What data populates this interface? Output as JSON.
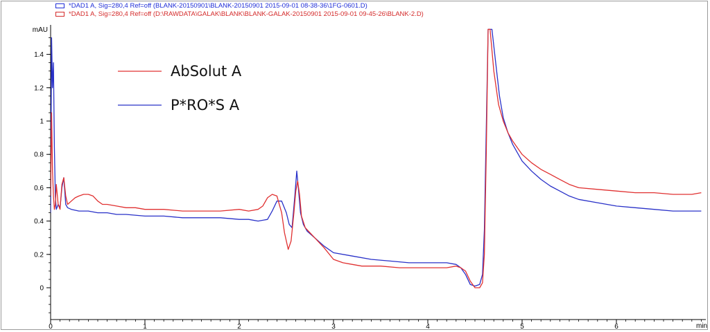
{
  "header": {
    "line1": "*DAD1 A, Sig=280,4 Ref=off (BLANK-20150901\\BLANK-20150901 2015-09-01 08-38-36\\1FG-0601.D)",
    "line2": "*DAD1 A, Sig=280,4 Ref=off (D:\\RAWDATA\\GALAK\\BLANK\\BLANK-GALAK-20150901 2015-09-01 09-45-26\\BLANK-2.D)"
  },
  "chart_data": {
    "type": "line",
    "title": "",
    "xlabel": "min",
    "ylabel": "mAU",
    "xlim": [
      0,
      6.9
    ],
    "ylim": [
      -0.3,
      1.55
    ],
    "xticks": [
      0,
      1,
      2,
      3,
      4,
      5,
      6
    ],
    "yticks": [
      0,
      0.2,
      0.4,
      0.6,
      0.8,
      1,
      1.2,
      1.4
    ],
    "ytick_labels": [
      "0",
      "0.2",
      "0.4",
      "0.6",
      "0.8",
      "1",
      "1.2",
      "1.4"
    ],
    "grid": false,
    "legend_placement": "top-left",
    "series": [
      {
        "name": "AbSolut A",
        "color": "#e03030",
        "x": [
          0.0,
          0.01,
          0.02,
          0.03,
          0.04,
          0.05,
          0.06,
          0.08,
          0.1,
          0.12,
          0.14,
          0.16,
          0.18,
          0.22,
          0.26,
          0.3,
          0.35,
          0.4,
          0.45,
          0.5,
          0.55,
          0.6,
          0.7,
          0.8,
          0.9,
          1.0,
          1.1,
          1.2,
          1.4,
          1.6,
          1.8,
          2.0,
          2.1,
          2.2,
          2.25,
          2.3,
          2.35,
          2.4,
          2.45,
          2.48,
          2.52,
          2.55,
          2.58,
          2.6,
          2.62,
          2.64,
          2.66,
          2.7,
          2.75,
          2.8,
          2.9,
          3.0,
          3.1,
          3.2,
          3.3,
          3.5,
          3.7,
          3.9,
          4.1,
          4.2,
          4.3,
          4.35,
          4.4,
          4.45,
          4.5,
          4.55,
          4.58,
          4.6,
          4.62,
          4.64,
          4.66,
          4.7,
          4.75,
          4.8,
          4.85,
          4.9,
          4.95,
          5.0,
          5.1,
          5.2,
          5.3,
          5.4,
          5.5,
          5.6,
          5.8,
          6.0,
          6.2,
          6.4,
          6.6,
          6.8,
          6.9
        ],
        "values": [
          0.55,
          1.05,
          0.7,
          0.55,
          0.47,
          0.5,
          0.62,
          0.5,
          0.47,
          0.62,
          0.66,
          0.55,
          0.5,
          0.52,
          0.54,
          0.55,
          0.56,
          0.56,
          0.55,
          0.52,
          0.5,
          0.5,
          0.49,
          0.48,
          0.48,
          0.47,
          0.47,
          0.47,
          0.46,
          0.46,
          0.46,
          0.47,
          0.46,
          0.47,
          0.49,
          0.54,
          0.56,
          0.55,
          0.45,
          0.33,
          0.23,
          0.28,
          0.45,
          0.58,
          0.64,
          0.56,
          0.43,
          0.36,
          0.33,
          0.3,
          0.24,
          0.17,
          0.15,
          0.14,
          0.13,
          0.13,
          0.12,
          0.12,
          0.12,
          0.12,
          0.13,
          0.12,
          0.1,
          0.04,
          0.0,
          0.0,
          0.03,
          0.2,
          0.8,
          1.55,
          1.55,
          1.3,
          1.1,
          1.0,
          0.93,
          0.88,
          0.84,
          0.8,
          0.75,
          0.71,
          0.68,
          0.65,
          0.62,
          0.6,
          0.59,
          0.58,
          0.57,
          0.57,
          0.56,
          0.56,
          0.57
        ]
      },
      {
        "name": "P*RO*S A",
        "color": "#2830c8",
        "x": [
          0.0,
          0.01,
          0.02,
          0.03,
          0.04,
          0.05,
          0.06,
          0.08,
          0.1,
          0.12,
          0.14,
          0.16,
          0.18,
          0.22,
          0.3,
          0.4,
          0.5,
          0.6,
          0.7,
          0.8,
          1.0,
          1.2,
          1.4,
          1.6,
          1.8,
          2.0,
          2.1,
          2.2,
          2.3,
          2.35,
          2.4,
          2.45,
          2.5,
          2.53,
          2.56,
          2.59,
          2.61,
          2.63,
          2.65,
          2.68,
          2.72,
          2.8,
          2.9,
          3.0,
          3.2,
          3.4,
          3.6,
          3.8,
          4.0,
          4.2,
          4.3,
          4.35,
          4.4,
          4.45,
          4.5,
          4.55,
          4.58,
          4.6,
          4.62,
          4.64,
          4.68,
          4.72,
          4.76,
          4.8,
          4.85,
          4.9,
          4.95,
          5.0,
          5.1,
          5.2,
          5.3,
          5.4,
          5.5,
          5.6,
          5.8,
          6.0,
          6.2,
          6.4,
          6.6,
          6.8,
          6.9
        ],
        "values": [
          0.45,
          1.5,
          1.2,
          1.35,
          0.85,
          0.55,
          0.47,
          0.5,
          0.48,
          0.6,
          0.66,
          0.5,
          0.48,
          0.47,
          0.46,
          0.46,
          0.45,
          0.45,
          0.44,
          0.44,
          0.43,
          0.43,
          0.42,
          0.42,
          0.42,
          0.41,
          0.41,
          0.4,
          0.41,
          0.46,
          0.52,
          0.52,
          0.45,
          0.38,
          0.36,
          0.55,
          0.7,
          0.58,
          0.45,
          0.38,
          0.34,
          0.3,
          0.25,
          0.21,
          0.19,
          0.17,
          0.16,
          0.15,
          0.15,
          0.15,
          0.14,
          0.12,
          0.08,
          0.02,
          0.01,
          0.02,
          0.08,
          0.35,
          0.95,
          1.55,
          1.55,
          1.35,
          1.15,
          1.02,
          0.93,
          0.86,
          0.81,
          0.76,
          0.7,
          0.65,
          0.61,
          0.58,
          0.55,
          0.53,
          0.51,
          0.49,
          0.48,
          0.47,
          0.46,
          0.46,
          0.46
        ]
      }
    ]
  }
}
